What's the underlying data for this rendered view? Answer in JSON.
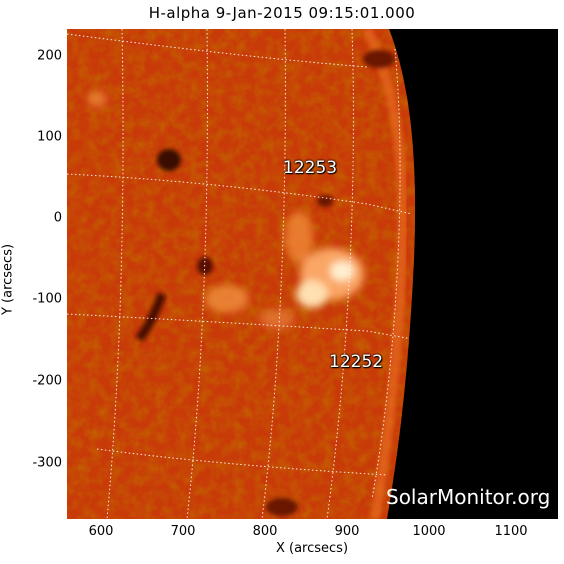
{
  "title": "H-alpha   9-Jan-2015 09:15:01.000",
  "x_axis": {
    "label": "X (arcsecs)",
    "ticks": [
      "600",
      "700",
      "800",
      "900",
      "1000",
      "1100"
    ]
  },
  "y_axis": {
    "label": "Y (arcsecs)",
    "ticks": [
      "200",
      "100",
      "0",
      "-100",
      "-200",
      "-300"
    ]
  },
  "regions": [
    {
      "id": "12253"
    },
    {
      "id": "12252"
    }
  ],
  "watermark": "SolarMonitor.org",
  "colors": {
    "disk": "#c83a08",
    "disk_dark": "#8a1a00",
    "bright": "#ffd8a0",
    "space": "#000000",
    "grid": "#ffffff"
  }
}
